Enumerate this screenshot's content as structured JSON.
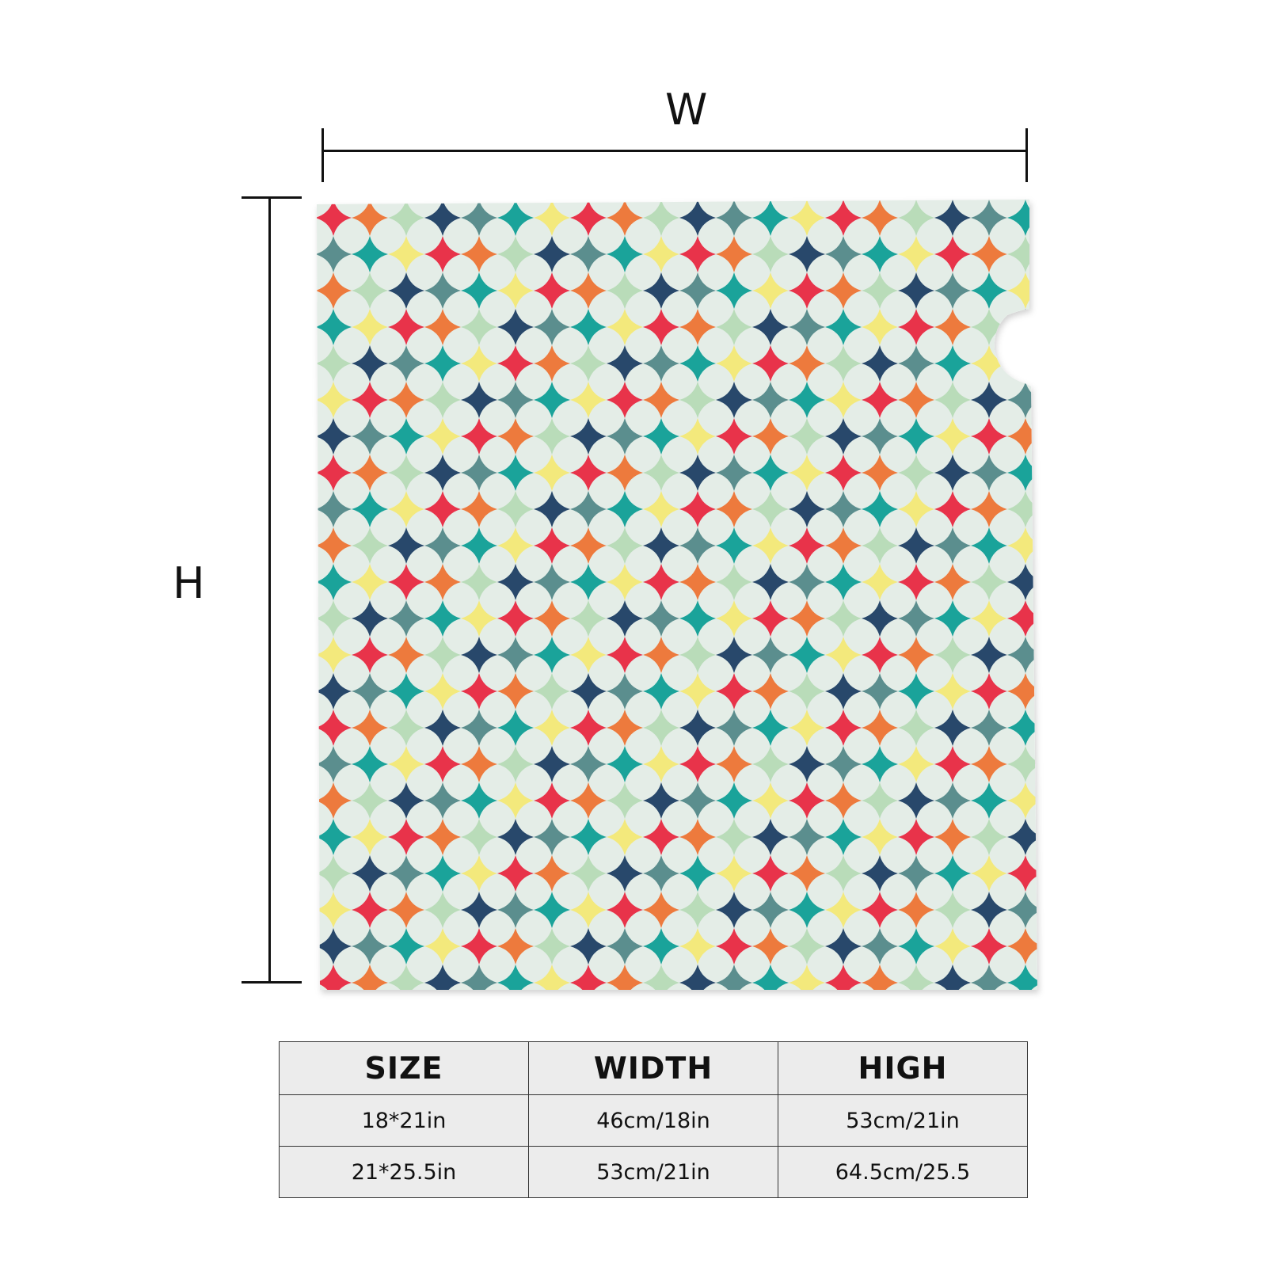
{
  "dimensions": {
    "width_label": "W",
    "height_label": "H"
  },
  "pattern": {
    "background_color": "#f8f9f8",
    "circle_color": "#dde8e1",
    "star_colors": [
      "#e8334a",
      "#1aa39a",
      "#28486b",
      "#ed7a3d",
      "#f3e97c",
      "#5b8e8e",
      "#b9dcb9"
    ]
  },
  "table": {
    "headers": [
      "SIZE",
      "WIDTH",
      "HIGH"
    ],
    "rows": [
      [
        "18*21in",
        "46cm/18in",
        "53cm/21in"
      ],
      [
        "21*25.5in",
        "53cm/21in",
        "64.5cm/25.5"
      ]
    ]
  }
}
